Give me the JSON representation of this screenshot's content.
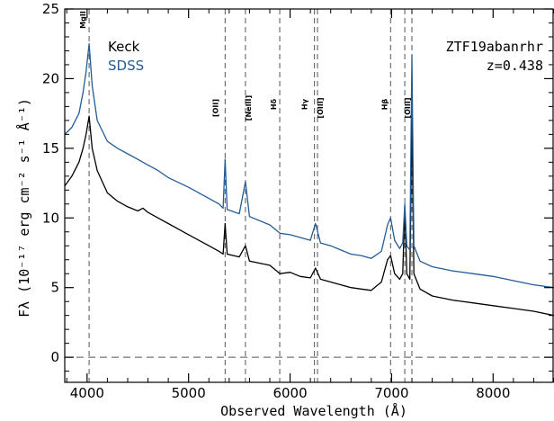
{
  "chart_data": {
    "type": "line",
    "xlabel": "Observed Wavelength (Å)",
    "ylabel": "Fλ (10⁻¹⁷ erg cm⁻² s⁻¹ Å⁻¹)",
    "xlim": [
      3780,
      8600
    ],
    "ylim": [
      -1.8,
      25
    ],
    "x_ticks": [
      4000,
      5000,
      6000,
      7000,
      8000
    ],
    "y_ticks": [
      0,
      5,
      10,
      15,
      20,
      25
    ],
    "zero_line": 0,
    "annotations": {
      "object_name": "ZTF19abanrhr",
      "redshift": "z=0.438"
    },
    "emission_lines": [
      {
        "label": "MgII",
        "x": [
          4020
        ]
      },
      {
        "label": "[OII]",
        "x": [
          5360
        ]
      },
      {
        "label": "[NeIII]",
        "x": [
          5560
        ]
      },
      {
        "label": "Hδ",
        "x": [
          5898
        ]
      },
      {
        "label": "Hγ",
        "x": [
          6240
        ]
      },
      {
        "label": "[OIII]",
        "x": [
          6270
        ]
      },
      {
        "label": "Hβ",
        "x": [
          6990
        ]
      },
      {
        "label": "[OIII]",
        "x": [
          7130,
          7200
        ]
      }
    ],
    "series": [
      {
        "name": "Keck",
        "color": "#000000",
        "points": [
          [
            3780,
            12.3
          ],
          [
            3850,
            13.0
          ],
          [
            3920,
            14.0
          ],
          [
            3960,
            15.0
          ],
          [
            3990,
            16.0
          ],
          [
            4020,
            17.3
          ],
          [
            4050,
            15.0
          ],
          [
            4100,
            13.4
          ],
          [
            4200,
            11.8
          ],
          [
            4300,
            11.2
          ],
          [
            4400,
            10.8
          ],
          [
            4500,
            10.5
          ],
          [
            4550,
            10.7
          ],
          [
            4600,
            10.4
          ],
          [
            4700,
            10.0
          ],
          [
            4800,
            9.6
          ],
          [
            5000,
            8.8
          ],
          [
            5200,
            8.0
          ],
          [
            5300,
            7.6
          ],
          [
            5340,
            7.4
          ],
          [
            5360,
            9.6
          ],
          [
            5380,
            7.4
          ],
          [
            5500,
            7.2
          ],
          [
            5560,
            8.0
          ],
          [
            5600,
            6.9
          ],
          [
            5800,
            6.6
          ],
          [
            5900,
            6.0
          ],
          [
            6000,
            6.1
          ],
          [
            6100,
            5.8
          ],
          [
            6200,
            5.7
          ],
          [
            6250,
            6.4
          ],
          [
            6300,
            5.6
          ],
          [
            6400,
            5.4
          ],
          [
            6500,
            5.2
          ],
          [
            6600,
            5.0
          ],
          [
            6700,
            4.9
          ],
          [
            6800,
            4.8
          ],
          [
            6900,
            5.4
          ],
          [
            6960,
            7.0
          ],
          [
            6990,
            7.3
          ],
          [
            7030,
            6.0
          ],
          [
            7080,
            5.6
          ],
          [
            7110,
            6.0
          ],
          [
            7130,
            10.8
          ],
          [
            7150,
            6.0
          ],
          [
            7180,
            5.6
          ],
          [
            7200,
            17.5
          ],
          [
            7220,
            6.0
          ],
          [
            7280,
            4.9
          ],
          [
            7400,
            4.4
          ],
          [
            7600,
            4.1
          ],
          [
            7800,
            3.9
          ],
          [
            8000,
            3.7
          ],
          [
            8200,
            3.5
          ],
          [
            8400,
            3.3
          ],
          [
            8600,
            3.0
          ]
        ]
      },
      {
        "name": "SDSS",
        "color": "#225c96",
        "points": [
          [
            3780,
            16.0
          ],
          [
            3850,
            16.5
          ],
          [
            3920,
            17.5
          ],
          [
            3960,
            19.0
          ],
          [
            3990,
            20.5
          ],
          [
            4020,
            22.5
          ],
          [
            4050,
            19.5
          ],
          [
            4100,
            17.0
          ],
          [
            4200,
            15.5
          ],
          [
            4300,
            15.0
          ],
          [
            4400,
            14.6
          ],
          [
            4500,
            14.2
          ],
          [
            4600,
            13.8
          ],
          [
            4700,
            13.4
          ],
          [
            4800,
            12.9
          ],
          [
            5000,
            12.2
          ],
          [
            5200,
            11.4
          ],
          [
            5300,
            11.0
          ],
          [
            5340,
            10.7
          ],
          [
            5360,
            14.2
          ],
          [
            5380,
            10.6
          ],
          [
            5500,
            10.3
          ],
          [
            5560,
            12.6
          ],
          [
            5600,
            10.1
          ],
          [
            5800,
            9.5
          ],
          [
            5900,
            8.9
          ],
          [
            6000,
            8.8
          ],
          [
            6100,
            8.6
          ],
          [
            6200,
            8.4
          ],
          [
            6250,
            9.6
          ],
          [
            6300,
            8.2
          ],
          [
            6400,
            8.0
          ],
          [
            6500,
            7.7
          ],
          [
            6600,
            7.4
          ],
          [
            6700,
            7.3
          ],
          [
            6800,
            7.1
          ],
          [
            6900,
            7.6
          ],
          [
            6960,
            9.5
          ],
          [
            6990,
            10.0
          ],
          [
            7030,
            8.4
          ],
          [
            7080,
            7.8
          ],
          [
            7110,
            8.2
          ],
          [
            7130,
            11.0
          ],
          [
            7150,
            8.0
          ],
          [
            7180,
            7.7
          ],
          [
            7200,
            21.7
          ],
          [
            7220,
            8.0
          ],
          [
            7280,
            6.9
          ],
          [
            7400,
            6.5
          ],
          [
            7600,
            6.2
          ],
          [
            7800,
            6.0
          ],
          [
            8000,
            5.8
          ],
          [
            8200,
            5.5
          ],
          [
            8400,
            5.2
          ],
          [
            8600,
            5.0
          ]
        ]
      }
    ]
  }
}
